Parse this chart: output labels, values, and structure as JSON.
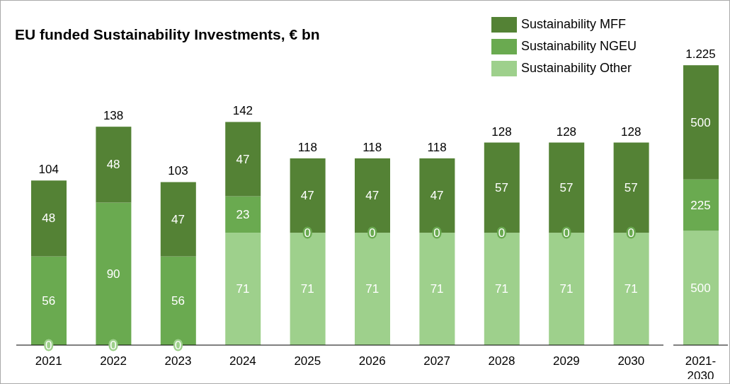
{
  "chart_data": [
    {
      "type": "bar",
      "title": "EU funded Sustainability Investments, € bn",
      "categories": [
        "2021",
        "2022",
        "2023",
        "2024",
        "2025",
        "2026",
        "2027",
        "2028",
        "2029",
        "2030"
      ],
      "stacked": true,
      "legend": "top right",
      "tick_labels": "x",
      "series": [
        {
          "name": "Sustainability Other",
          "color": "#9ed08c",
          "values": [
            0,
            0,
            0,
            71,
            71,
            71,
            71,
            71,
            71,
            71
          ],
          "value_labels": [
            null,
            null,
            null,
            "71",
            "71",
            "71",
            "71",
            "71",
            "71",
            "71"
          ]
        },
        {
          "name": "Sustainability NGEU",
          "color": "#6aaa50",
          "values": [
            56,
            90,
            56,
            23,
            0,
            0,
            0,
            0,
            0,
            0
          ],
          "value_labels": [
            "56",
            "90",
            "56",
            "23",
            null,
            null,
            null,
            null,
            null,
            null
          ]
        },
        {
          "name": "Sustainability MFF",
          "color": "#548235",
          "values": [
            48,
            48,
            47,
            47,
            47,
            47,
            47,
            57,
            57,
            57
          ],
          "value_labels": [
            "48",
            "48",
            "47",
            "47",
            "47",
            "47",
            "47",
            "57",
            "57",
            "57"
          ]
        }
      ],
      "annotations": [
        {
          "text": "0",
          "x": "2021",
          "y": 0
        },
        {
          "text": "0",
          "x": "2022",
          "y": 0
        },
        {
          "text": "0",
          "x": "2023",
          "y": 0
        },
        {
          "text": "0",
          "x": "2025",
          "y": 71
        },
        {
          "text": "0",
          "x": "2026",
          "y": 71
        },
        {
          "text": "0",
          "x": "2027",
          "y": 71
        },
        {
          "text": "0",
          "x": "2028",
          "y": 71
        },
        {
          "text": "0",
          "x": "2029",
          "y": 71
        },
        {
          "text": "0",
          "x": "2030",
          "y": 71
        }
      ],
      "totals": [
        "104",
        "138",
        "103",
        "142",
        "118",
        "118",
        "118",
        "128",
        "128",
        "128"
      ]
    },
    {
      "type": "bar",
      "categories": [
        "2021-2030"
      ],
      "stacked": true,
      "data_labels": true,
      "tick_labels": "x",
      "series": [
        {
          "color": "#9ed08c",
          "values": [
            500
          ]
        },
        {
          "color": "#6aaa50",
          "values": [
            225
          ]
        },
        {
          "color": "#548235",
          "values": [
            500
          ]
        }
      ],
      "totals": [
        "1.225"
      ]
    }
  ]
}
